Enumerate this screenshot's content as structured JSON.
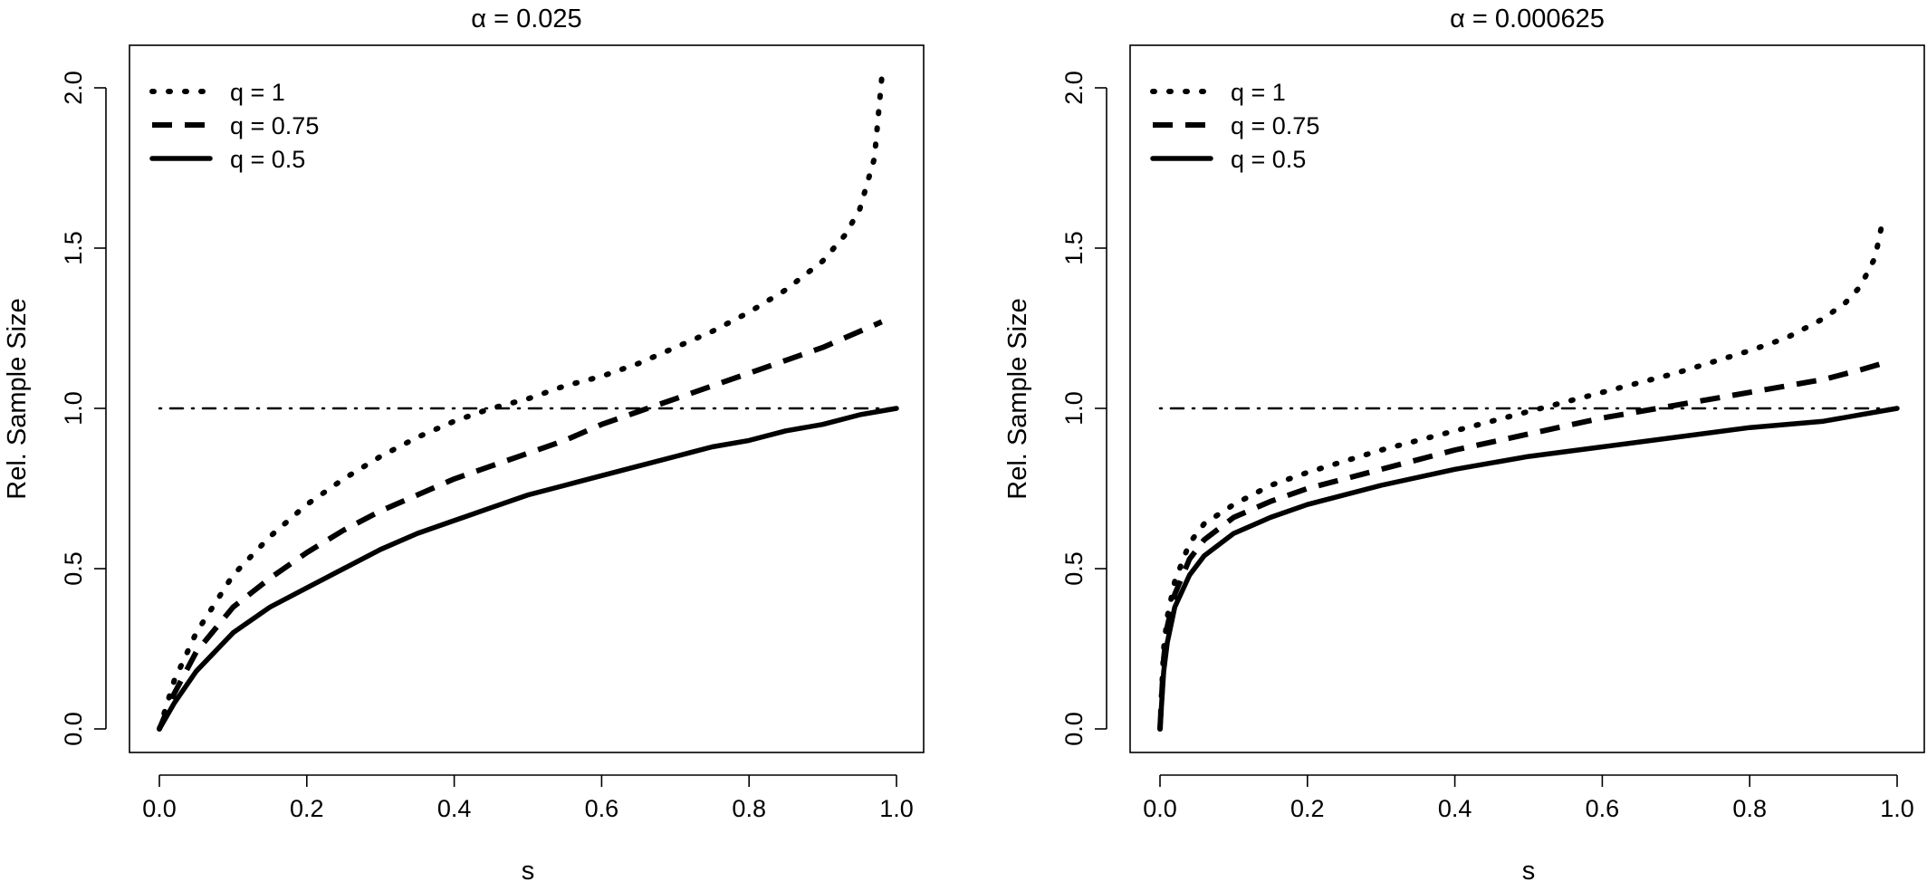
{
  "chart_data": [
    {
      "type": "line",
      "title": "α = 0.025",
      "xlabel": "s",
      "ylabel": "Rel. Sample Size",
      "xlim": [
        0,
        1
      ],
      "ylim": [
        0,
        2.05
      ],
      "xticks": [
        0.0,
        0.2,
        0.4,
        0.6,
        0.8,
        1.0
      ],
      "xtick_labels": [
        "0.0",
        "0.2",
        "0.4",
        "0.6",
        "0.8",
        "1.0"
      ],
      "yticks": [
        0.0,
        0.5,
        1.0,
        1.5,
        2.0
      ],
      "ytick_labels": [
        "0.0",
        "0.5",
        "1.0",
        "1.5",
        "2.0"
      ],
      "grid": false,
      "legend_position": "top-left",
      "legend": [
        {
          "label": "q = 1",
          "style": "dotted"
        },
        {
          "label": "q = 0.75",
          "style": "dashed"
        },
        {
          "label": "q = 0.5",
          "style": "solid"
        }
      ],
      "reference_line": {
        "y": 1.0,
        "x": [
          0,
          1
        ],
        "style": "dotdash"
      },
      "series": [
        {
          "name": "q = 1",
          "style": "dotted",
          "x": [
            0,
            0.02,
            0.05,
            0.1,
            0.15,
            0.2,
            0.25,
            0.3,
            0.35,
            0.4,
            0.45,
            0.5,
            0.55,
            0.6,
            0.65,
            0.7,
            0.75,
            0.8,
            0.85,
            0.9,
            0.93,
            0.95,
            0.97,
            0.98
          ],
          "y": [
            0,
            0.15,
            0.3,
            0.48,
            0.6,
            0.7,
            0.78,
            0.85,
            0.91,
            0.96,
            1.0,
            1.03,
            1.07,
            1.1,
            1.14,
            1.19,
            1.24,
            1.3,
            1.37,
            1.46,
            1.54,
            1.62,
            1.78,
            2.03
          ]
        },
        {
          "name": "q = 0.75",
          "style": "dashed",
          "x": [
            0,
            0.02,
            0.05,
            0.1,
            0.15,
            0.2,
            0.25,
            0.3,
            0.35,
            0.4,
            0.45,
            0.5,
            0.55,
            0.6,
            0.65,
            0.7,
            0.75,
            0.8,
            0.85,
            0.9,
            0.95,
            0.98
          ],
          "y": [
            0,
            0.11,
            0.24,
            0.38,
            0.47,
            0.55,
            0.62,
            0.68,
            0.73,
            0.78,
            0.82,
            0.86,
            0.9,
            0.95,
            0.99,
            1.03,
            1.07,
            1.11,
            1.15,
            1.19,
            1.24,
            1.27
          ]
        },
        {
          "name": "q = 0.5",
          "style": "solid",
          "x": [
            0,
            0.02,
            0.05,
            0.1,
            0.15,
            0.2,
            0.25,
            0.3,
            0.35,
            0.4,
            0.45,
            0.5,
            0.55,
            0.6,
            0.65,
            0.7,
            0.75,
            0.8,
            0.85,
            0.9,
            0.95,
            1.0
          ],
          "y": [
            0,
            0.08,
            0.18,
            0.3,
            0.38,
            0.44,
            0.5,
            0.56,
            0.61,
            0.65,
            0.69,
            0.73,
            0.76,
            0.79,
            0.82,
            0.85,
            0.88,
            0.9,
            0.93,
            0.95,
            0.98,
            1.0
          ]
        }
      ]
    },
    {
      "type": "line",
      "title": "α = 0.000625",
      "xlabel": "s",
      "ylabel": "Rel. Sample Size",
      "xlim": [
        0,
        1
      ],
      "ylim": [
        0,
        2.05
      ],
      "xticks": [
        0.0,
        0.2,
        0.4,
        0.6,
        0.8,
        1.0
      ],
      "xtick_labels": [
        "0.0",
        "0.2",
        "0.4",
        "0.6",
        "0.8",
        "1.0"
      ],
      "yticks": [
        0.0,
        0.5,
        1.0,
        1.5,
        2.0
      ],
      "ytick_labels": [
        "0.0",
        "0.5",
        "1.0",
        "1.5",
        "2.0"
      ],
      "grid": false,
      "legend_position": "top-left",
      "legend": [
        {
          "label": "q = 1",
          "style": "dotted"
        },
        {
          "label": "q = 0.75",
          "style": "dashed"
        },
        {
          "label": "q = 0.5",
          "style": "solid"
        }
      ],
      "reference_line": {
        "y": 1.0,
        "x": [
          0,
          1
        ],
        "style": "dotdash"
      },
      "series": [
        {
          "name": "q = 1",
          "style": "dotted",
          "x": [
            0,
            0.005,
            0.01,
            0.02,
            0.04,
            0.06,
            0.1,
            0.15,
            0.2,
            0.3,
            0.4,
            0.5,
            0.6,
            0.7,
            0.8,
            0.85,
            0.9,
            0.93,
            0.95,
            0.97,
            0.98
          ],
          "y": [
            0,
            0.25,
            0.35,
            0.46,
            0.58,
            0.64,
            0.7,
            0.76,
            0.8,
            0.87,
            0.93,
            0.99,
            1.05,
            1.11,
            1.18,
            1.22,
            1.28,
            1.33,
            1.38,
            1.47,
            1.58
          ]
        },
        {
          "name": "q = 0.75",
          "style": "dashed",
          "x": [
            0,
            0.005,
            0.01,
            0.02,
            0.04,
            0.06,
            0.1,
            0.15,
            0.2,
            0.3,
            0.4,
            0.5,
            0.6,
            0.7,
            0.8,
            0.9,
            0.95,
            0.98
          ],
          "y": [
            0,
            0.22,
            0.32,
            0.42,
            0.53,
            0.59,
            0.66,
            0.71,
            0.75,
            0.81,
            0.87,
            0.92,
            0.97,
            1.01,
            1.05,
            1.09,
            1.12,
            1.14
          ]
        },
        {
          "name": "q = 0.5",
          "style": "solid",
          "x": [
            0,
            0.005,
            0.01,
            0.02,
            0.04,
            0.06,
            0.1,
            0.15,
            0.2,
            0.3,
            0.4,
            0.5,
            0.6,
            0.7,
            0.8,
            0.9,
            0.95,
            1.0
          ],
          "y": [
            0,
            0.18,
            0.27,
            0.38,
            0.48,
            0.54,
            0.61,
            0.66,
            0.7,
            0.76,
            0.81,
            0.85,
            0.88,
            0.91,
            0.94,
            0.96,
            0.98,
            1.0
          ]
        }
      ]
    }
  ]
}
